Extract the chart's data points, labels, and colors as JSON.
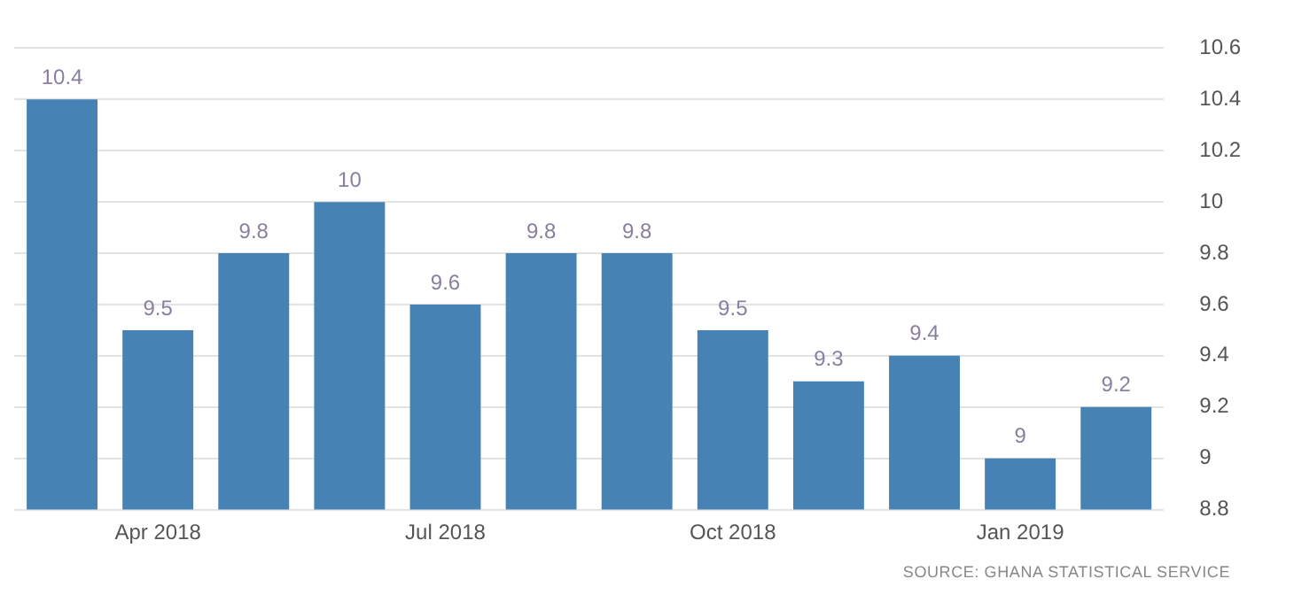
{
  "chart_data": {
    "type": "bar",
    "categories": [
      null,
      "Apr 2018",
      null,
      null,
      "Jul 2018",
      null,
      null,
      "Oct 2018",
      null,
      null,
      "Jan 2019",
      null
    ],
    "values": [
      10.4,
      9.5,
      9.8,
      10,
      9.6,
      9.8,
      9.8,
      9.5,
      9.3,
      9.4,
      9,
      9.2
    ],
    "color": "#4682b4",
    "ylim": [
      8.8,
      10.6
    ],
    "yticks": [
      8.8,
      9,
      9.2,
      9.4,
      9.6,
      9.8,
      10,
      10.2,
      10.4,
      10.6
    ],
    "grid": "y",
    "data_labels": true,
    "annotations": [
      "SOURCE: GHANA STATISTICAL SERVICE"
    ]
  }
}
